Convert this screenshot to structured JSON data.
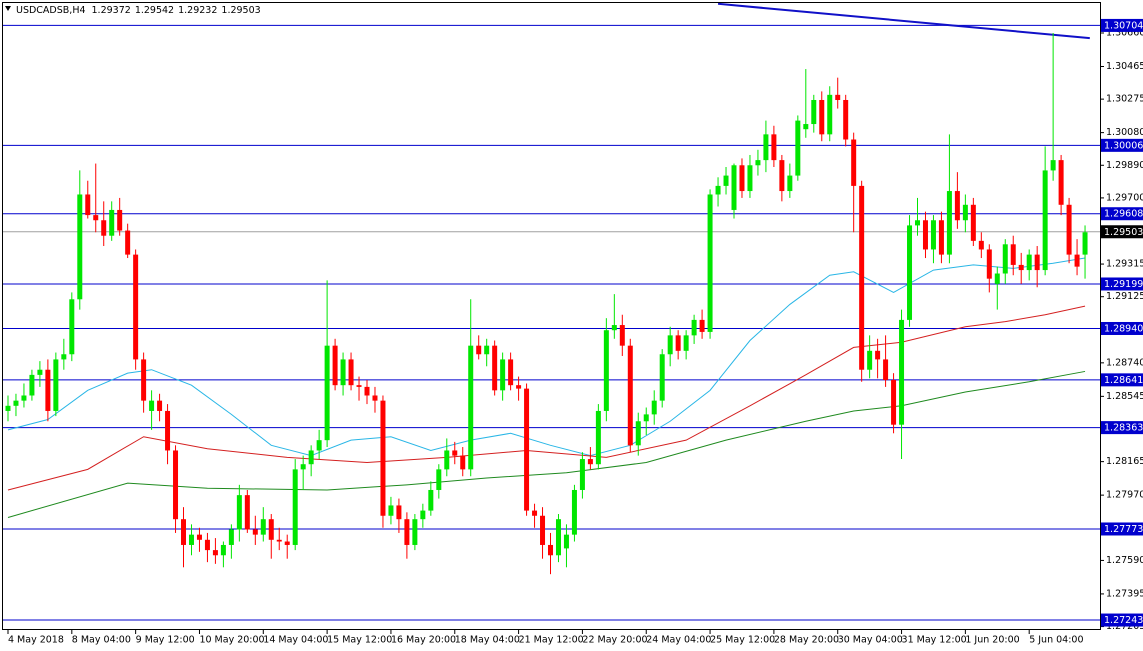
{
  "chart_data": {
    "type": "candlestick",
    "symbol": "USDCADSB,H4",
    "header_values": [
      1.29372,
      1.29542,
      1.29232,
      1.29503
    ],
    "up_color": "#00e600",
    "down_color": "#ff0000",
    "candles": [
      [
        1.2846,
        1.2855,
        1.284,
        1.2849
      ],
      [
        1.2849,
        1.2856,
        1.2843,
        1.2852
      ],
      [
        1.2852,
        1.2862,
        1.2848,
        1.2855
      ],
      [
        1.2855,
        1.287,
        1.2852,
        1.2867
      ],
      [
        1.2867,
        1.2875,
        1.286,
        1.287
      ],
      [
        1.287,
        1.2876,
        1.284,
        1.2846
      ],
      [
        1.2846,
        1.288,
        1.2843,
        1.2876
      ],
      [
        1.2876,
        1.2888,
        1.287,
        1.2879
      ],
      [
        1.2879,
        1.2915,
        1.2875,
        1.2911
      ],
      [
        1.2911,
        1.2986,
        1.2905,
        1.2972
      ],
      [
        1.2972,
        1.298,
        1.2958,
        1.296
      ],
      [
        1.296,
        1.299,
        1.295,
        1.2957
      ],
      [
        1.2957,
        1.2968,
        1.2942,
        1.2948
      ],
      [
        1.2948,
        1.2968,
        1.2945,
        1.2963
      ],
      [
        1.2963,
        1.297,
        1.2948,
        1.2951
      ],
      [
        1.2951,
        1.2955,
        1.2935,
        1.2937
      ],
      [
        1.2937,
        1.294,
        1.287,
        1.2876
      ],
      [
        1.2876,
        1.288,
        1.2845,
        1.2852
      ],
      [
        1.2846,
        1.2858,
        1.2835,
        1.2852
      ],
      [
        1.2852,
        1.2856,
        1.284,
        1.2846
      ],
      [
        1.2846,
        1.285,
        1.2815,
        1.2823
      ],
      [
        1.2823,
        1.2826,
        1.2775,
        1.2783
      ],
      [
        1.2783,
        1.279,
        1.2755,
        1.2768
      ],
      [
        1.2768,
        1.278,
        1.2762,
        1.2774
      ],
      [
        1.2774,
        1.2778,
        1.2764,
        1.2771
      ],
      [
        1.2771,
        1.2775,
        1.2758,
        1.2765
      ],
      [
        1.2765,
        1.2772,
        1.2757,
        1.2762
      ],
      [
        1.2762,
        1.277,
        1.2755,
        1.2768
      ],
      [
        1.2768,
        1.278,
        1.276,
        1.2777
      ],
      [
        1.2777,
        1.2803,
        1.277,
        1.2797
      ],
      [
        1.2797,
        1.28,
        1.2775,
        1.2777
      ],
      [
        1.2777,
        1.2785,
        1.2768,
        1.2774
      ],
      [
        1.2774,
        1.279,
        1.277,
        1.2783
      ],
      [
        1.2783,
        1.2786,
        1.276,
        1.2771
      ],
      [
        1.2771,
        1.2778,
        1.2765,
        1.277
      ],
      [
        1.277,
        1.2774,
        1.276,
        1.2768
      ],
      [
        1.2768,
        1.2818,
        1.2765,
        1.2812
      ],
      [
        1.2812,
        1.282,
        1.28,
        1.2815
      ],
      [
        1.2815,
        1.2826,
        1.2808,
        1.2823
      ],
      [
        1.2823,
        1.2835,
        1.2818,
        1.2829
      ],
      [
        1.2829,
        1.2922,
        1.2825,
        1.2884
      ],
      [
        1.2884,
        1.2888,
        1.2858,
        1.2861
      ],
      [
        1.2861,
        1.288,
        1.2855,
        1.2876
      ],
      [
        1.2876,
        1.288,
        1.2858,
        1.2861
      ],
      [
        1.2861,
        1.2866,
        1.2852,
        1.286
      ],
      [
        1.286,
        1.2864,
        1.285,
        1.2855
      ],
      [
        1.2855,
        1.286,
        1.2845,
        1.2852
      ],
      [
        1.2852,
        1.2855,
        1.2778,
        1.2785
      ],
      [
        1.2785,
        1.2796,
        1.278,
        1.2791
      ],
      [
        1.2791,
        1.2795,
        1.2775,
        1.2783
      ],
      [
        1.2783,
        1.2787,
        1.276,
        1.2768
      ],
      [
        1.2768,
        1.2786,
        1.2765,
        1.2783
      ],
      [
        1.2783,
        1.2792,
        1.2778,
        1.2788
      ],
      [
        1.2788,
        1.2805,
        1.2785,
        1.28
      ],
      [
        1.28,
        1.2815,
        1.2795,
        1.2812
      ],
      [
        1.2812,
        1.283,
        1.2808,
        1.2823
      ],
      [
        1.2823,
        1.2828,
        1.2815,
        1.282
      ],
      [
        1.282,
        1.2825,
        1.2808,
        1.2812
      ],
      [
        1.2812,
        1.2911,
        1.2808,
        1.2884
      ],
      [
        1.2884,
        1.289,
        1.2876,
        1.2879
      ],
      [
        1.2879,
        1.2888,
        1.2872,
        1.2884
      ],
      [
        1.2884,
        1.2887,
        1.2855,
        1.2858
      ],
      [
        1.2858,
        1.288,
        1.2852,
        1.2876
      ],
      [
        1.2876,
        1.288,
        1.2858,
        1.2861
      ],
      [
        1.2861,
        1.2866,
        1.2852,
        1.2859
      ],
      [
        1.2859,
        1.2862,
        1.2785,
        1.2788
      ],
      [
        1.2788,
        1.2792,
        1.2778,
        1.2785
      ],
      [
        1.2785,
        1.279,
        1.276,
        1.2768
      ],
      [
        1.2768,
        1.2775,
        1.2751,
        1.2762
      ],
      [
        1.2762,
        1.2786,
        1.2758,
        1.2783
      ],
      [
        1.2766,
        1.278,
        1.2755,
        1.2774
      ],
      [
        1.2774,
        1.2803,
        1.277,
        1.28
      ],
      [
        1.28,
        1.2822,
        1.2795,
        1.2818
      ],
      [
        1.2818,
        1.2825,
        1.2812,
        1.2815
      ],
      [
        1.2815,
        1.285,
        1.2812,
        1.2846
      ],
      [
        1.2846,
        1.29,
        1.284,
        1.2893
      ],
      [
        1.2893,
        1.2914,
        1.2888,
        1.2896
      ],
      [
        1.2896,
        1.2902,
        1.2878,
        1.2884
      ],
      [
        1.2884,
        1.2888,
        1.2822,
        1.2826
      ],
      [
        1.2826,
        1.2845,
        1.282,
        1.284
      ],
      [
        1.284,
        1.2848,
        1.2832,
        1.2844
      ],
      [
        1.2844,
        1.2858,
        1.2838,
        1.2852
      ],
      [
        1.2852,
        1.2882,
        1.2848,
        1.2879
      ],
      [
        1.2879,
        1.2895,
        1.2872,
        1.289
      ],
      [
        1.289,
        1.2893,
        1.2876,
        1.2881
      ],
      [
        1.2881,
        1.2893,
        1.2876,
        1.289
      ],
      [
        1.289,
        1.2902,
        1.2885,
        1.2899
      ],
      [
        1.2899,
        1.2905,
        1.2888,
        1.2892
      ],
      [
        1.2892,
        1.2975,
        1.2888,
        1.2972
      ],
      [
        1.2972,
        1.2982,
        1.2965,
        1.2977
      ],
      [
        1.2977,
        1.2988,
        1.2972,
        1.2983
      ],
      [
        1.2963,
        1.299,
        1.2958,
        1.2989
      ],
      [
        1.2989,
        1.2993,
        1.297,
        1.2974
      ],
      [
        1.2974,
        1.2995,
        1.297,
        1.2989
      ],
      [
        1.2989,
        1.2998,
        1.2983,
        1.2992
      ],
      [
        1.2992,
        1.3015,
        1.2985,
        1.3007
      ],
      [
        1.3007,
        1.3012,
        1.2988,
        1.2992
      ],
      [
        1.2992,
        1.2995,
        1.2968,
        1.2974
      ],
      [
        1.2974,
        1.299,
        1.297,
        1.2983
      ],
      [
        1.2983,
        1.3018,
        1.298,
        1.3015
      ],
      [
        1.301,
        1.3045,
        1.3005,
        1.3013
      ],
      [
        1.3013,
        1.303,
        1.3008,
        1.3027
      ],
      [
        1.3027,
        1.3032,
        1.3003,
        1.3007
      ],
      [
        1.3007,
        1.3035,
        1.3003,
        1.303
      ],
      [
        1.303,
        1.304,
        1.3022,
        1.3027
      ],
      [
        1.3027,
        1.303,
        1.3,
        1.3004
      ],
      [
        1.3004,
        1.3008,
        1.295,
        1.2977
      ],
      [
        1.2977,
        1.298,
        1.2863,
        1.287
      ],
      [
        1.287,
        1.289,
        1.2865,
        1.2881
      ],
      [
        1.2881,
        1.2888,
        1.2865,
        1.2876
      ],
      [
        1.2876,
        1.289,
        1.286,
        1.2864
      ],
      [
        1.2864,
        1.2868,
        1.2833,
        1.2838
      ],
      [
        1.2838,
        1.2905,
        1.2818,
        1.2899
      ],
      [
        1.2899,
        1.296,
        1.2895,
        1.2954
      ],
      [
        1.2954,
        1.297,
        1.2948,
        1.2957
      ],
      [
        1.2957,
        1.2962,
        1.2935,
        1.294
      ],
      [
        1.294,
        1.296,
        1.2932,
        1.2957
      ],
      [
        1.2957,
        1.2962,
        1.2932,
        1.2937
      ],
      [
        1.2937,
        1.3007,
        1.2932,
        1.2974
      ],
      [
        1.2974,
        1.2985,
        1.2952,
        1.2957
      ],
      [
        1.2957,
        1.2972,
        1.295,
        1.2966
      ],
      [
        1.2966,
        1.297,
        1.2942,
        1.2945
      ],
      [
        1.2945,
        1.295,
        1.2935,
        1.294
      ],
      [
        1.294,
        1.2943,
        1.2915,
        1.2923
      ],
      [
        1.292,
        1.293,
        1.2905,
        1.2926
      ],
      [
        1.2926,
        1.2946,
        1.292,
        1.2943
      ],
      [
        1.2943,
        1.2948,
        1.2925,
        1.2931
      ],
      [
        1.2931,
        1.2938,
        1.292,
        1.2928
      ],
      [
        1.2928,
        1.294,
        1.2922,
        1.2937
      ],
      [
        1.2937,
        1.2942,
        1.2918,
        1.2928
      ],
      [
        1.2928,
        1.3,
        1.2925,
        1.2986
      ],
      [
        1.2986,
        1.3066,
        1.298,
        1.2992
      ],
      [
        1.2992,
        1.2995,
        1.296,
        1.2966
      ],
      [
        1.2966,
        1.297,
        1.2932,
        1.2937
      ],
      [
        1.2937,
        1.2946,
        1.2925,
        1.293
      ],
      [
        1.2937,
        1.2954,
        1.2923,
        1.295
      ]
    ],
    "moving_averages": [
      {
        "color": "#29b6e6",
        "x": [
          0,
          5,
          10,
          15,
          18,
          23,
          28,
          33,
          38,
          43,
          48,
          53,
          58,
          63,
          68,
          73,
          78,
          83,
          88,
          93,
          98,
          103,
          106,
          111,
          116,
          121,
          126,
          131,
          135
        ],
        "values": [
          1.2835,
          1.2841,
          1.2858,
          1.2868,
          1.287,
          1.2861,
          1.2844,
          1.2826,
          1.282,
          1.2829,
          1.2831,
          1.2823,
          1.2829,
          1.2833,
          1.2826,
          1.282,
          1.2826,
          1.284,
          1.2858,
          1.2887,
          1.2908,
          1.2925,
          1.2927,
          1.2915,
          1.2928,
          1.2931,
          1.2929,
          1.2932,
          1.2935
        ]
      },
      {
        "color": "#d42020",
        "x": [
          0,
          10,
          17,
          25,
          35,
          45,
          55,
          65,
          75,
          85,
          93,
          100,
          106,
          112,
          120,
          125,
          130,
          135
        ],
        "values": [
          1.28,
          1.2812,
          1.2831,
          1.2824,
          1.2819,
          1.2816,
          1.2819,
          1.2823,
          1.2819,
          1.2829,
          1.2849,
          1.2867,
          1.2883,
          1.2886,
          1.2895,
          1.2898,
          1.2902,
          1.2907
        ]
      },
      {
        "color": "#1f8a1f",
        "x": [
          0,
          15,
          25,
          40,
          50,
          60,
          70,
          80,
          90,
          100,
          106,
          112,
          120,
          128,
          135
        ],
        "values": [
          1.2784,
          1.2804,
          1.2801,
          1.28,
          1.2803,
          1.2807,
          1.281,
          1.2816,
          1.2829,
          1.284,
          1.2846,
          1.2849,
          1.2857,
          1.2863,
          1.2869
        ]
      }
    ],
    "trendline": {
      "color": "#1010c8",
      "x": [
        89,
        135.6
      ],
      "values": [
        1.3083,
        1.3063
      ]
    },
    "levels_color": "#0000cd",
    "levels": [
      1.30704,
      1.30006,
      1.29608,
      1.29199,
      {
        "value": 1.2894,
        "label": "1.28940"
      },
      1.28641,
      1.28363,
      1.27773,
      1.27243
    ],
    "price_line": 1.29503,
    "xlim": [
      -0.625,
      136.875
    ],
    "ylim": [
      1.27185,
      1.30852
    ],
    "yticks": [
      {
        "value": 1.3066,
        "label": "1.30660"
      },
      1.30465,
      1.30275,
      {
        "value": 1.3008,
        "label": "1.30080"
      },
      {
        "value": 1.2989,
        "label": "1.29890"
      },
      {
        "value": 1.297,
        "label": "1.29700"
      },
      1.29315,
      1.29125,
      {
        "value": 1.2874,
        "label": "1.28740"
      },
      1.28545,
      1.28165,
      {
        "value": 1.2797,
        "label": "1.27970"
      },
      {
        "value": 1.2759,
        "label": "1.27590"
      },
      1.27395,
      1.27205
    ],
    "xticks": [
      {
        "value": 0,
        "label": "4 May 2018"
      },
      {
        "value": 8,
        "label": "8 May 04:00"
      },
      {
        "value": 16,
        "label": "9 May 12:00"
      },
      {
        "value": 24,
        "label": "10 May 20:00"
      },
      {
        "value": 32,
        "label": "14 May 04:00"
      },
      {
        "value": 40,
        "label": "15 May 12:00"
      },
      {
        "value": 48,
        "label": "16 May 20:00"
      },
      {
        "value": 56,
        "label": "18 May 04:00"
      },
      {
        "value": 64,
        "label": "21 May 12:00"
      },
      {
        "value": 72,
        "label": "22 May 20:00"
      },
      {
        "value": 80,
        "label": "24 May 04:00"
      },
      {
        "value": 88,
        "label": "25 May 12:00"
      },
      {
        "value": 96,
        "label": "28 May 20:00"
      },
      {
        "value": 104,
        "label": "30 May 04:00"
      },
      {
        "value": 112,
        "label": "31 May 12:00"
      },
      {
        "value": 120,
        "label": "1 Jun 20:00"
      },
      {
        "value": 128,
        "label": "5 Jun 04:00"
      }
    ]
  }
}
